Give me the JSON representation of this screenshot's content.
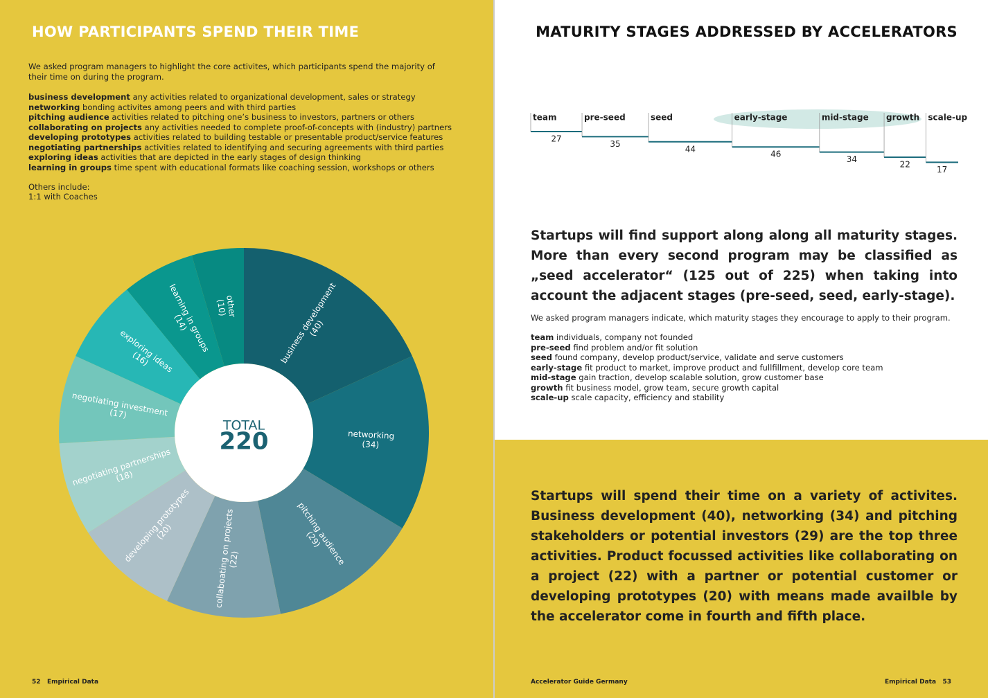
{
  "left": {
    "title": "HOW PARTICIPANTS SPEND THEIR TIME",
    "intro": "We asked program managers to highlight the core activites, which participants spend the majority of their time on during the program.",
    "definitions": [
      {
        "term": "business development",
        "text": "any activities related to organizational development, sales or strategy"
      },
      {
        "term": "networking",
        "text": "bonding activites among peers and with third parties"
      },
      {
        "term": "pitching audience",
        "text": "activities related to pitching one’s business to investors, partners or others"
      },
      {
        "term": "collaborating on projects",
        "text": "any activities needed to complete proof-of-concepts with (industry) partners"
      },
      {
        "term": "developing prototypes",
        "text": "activities related to building testable or presentable product/service features"
      },
      {
        "term": "negotiating partnerships",
        "text": "activities related to identifying and securing agreements with third parties"
      },
      {
        "term": "exploring ideas",
        "text": "activities that are depicted in the early stages of design thinking"
      },
      {
        "term": "learning in groups",
        "text": "time spent with educational formats like coaching session, workshops or others"
      }
    ],
    "others_heading": "Others include:",
    "others": "1:1 with Coaches",
    "footer": {
      "page": 52,
      "section": "Empirical Data"
    }
  },
  "right": {
    "title": "MATURITY STAGES ADDRESSED BY ACCELERATORS",
    "summary": "Startups will find support along along all maturity stages. More than every second program may be classified as „seed accelerator“ (125 out of 225) when taking into account the adjacent stages (pre-seed, seed, early-stage).",
    "intro": "We asked program managers indicate, which maturity stages they encourage to apply to their program.",
    "definitions": [
      {
        "term": "team",
        "text": "individuals, company not founded"
      },
      {
        "term": "pre-seed",
        "text": "find problem and/or fit solution"
      },
      {
        "term": "seed",
        "text": "found company, develop product/service, validate and serve customers"
      },
      {
        "term": "early-stage",
        "text": "fit product to market, improve product and fullfillment, develop core team"
      },
      {
        "term": "mid-stage",
        "text": "gain traction, develop scalable solution, grow customer base"
      },
      {
        "term": "growth",
        "text": "fit business model, grow team, secure growth capital"
      },
      {
        "term": "scale-up",
        "text": "scale capacity, efficiency and stability"
      }
    ],
    "conclusion": "Startups will spend their time on a variety of activites. Business development (40), networking (34) and pitching stakeholders or potential investors (29) are the top three activities. Product focussed activities like collaborating on a project (22) with a partner or potential customer or developing prototypes (20) with means made availble by the accelerator come in fourth and fifth place.",
    "footer": {
      "guide": "Accelerator Guide Germany",
      "section": "Empirical Data",
      "page": 53
    }
  },
  "chart_data": [
    {
      "type": "pie",
      "categories": [
        "business development",
        "networking",
        "pitching audience",
        "collaboating on projects",
        "developing prototypes",
        "negotiating partnerships",
        "negotiating investment",
        "exploring ideas",
        "learning in groups",
        "other"
      ],
      "values": [
        40,
        34,
        29,
        22,
        20,
        18,
        17,
        16,
        14,
        10
      ],
      "value_labels": [
        "(40)",
        "(34)",
        "(29)",
        "(22)",
        "(20)",
        "(18)",
        "(17)",
        "(16)",
        "(14)",
        "(10)"
      ],
      "colors": [
        "#14606e",
        "#16707f",
        "#4f8796",
        "#7fa2ae",
        "#adc0c8",
        "#a3d2cc",
        "#73c6bb",
        "#27b7b5",
        "#0a978e",
        "#078a82"
      ],
      "center_label": "TOTAL",
      "total": 220
    },
    {
      "type": "stages",
      "categories": [
        "team",
        "pre-seed",
        "seed",
        "early-stage",
        "mid-stage",
        "growth",
        "scale-up"
      ],
      "values": [
        27,
        35,
        44,
        46,
        34,
        22,
        17
      ],
      "color": "#1b6c7c"
    }
  ]
}
